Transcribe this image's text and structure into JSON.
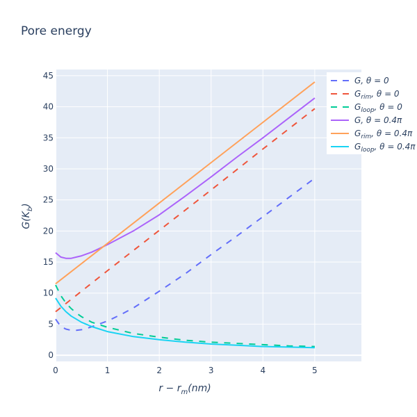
{
  "chart_data": {
    "type": "line",
    "title": "Pore energy",
    "xlabel": "r − r_m(nm)",
    "xlabel_main": "r − r",
    "xlabel_sub": "m",
    "xlabel_tail": "(nm)",
    "ylabel": "G(K_b)",
    "ylabel_main": "G(K",
    "ylabel_sub": "b",
    "ylabel_tail": ")",
    "xlim": [
      0,
      5.9
    ],
    "ylim": [
      -1,
      46
    ],
    "xticks": [
      0,
      1,
      2,
      3,
      4,
      5
    ],
    "yticks": [
      0,
      5,
      10,
      15,
      20,
      25,
      30,
      35,
      40,
      45
    ],
    "grid": true,
    "legend_position": "right",
    "series": [
      {
        "name": "G, θ = 0",
        "name_main": "G, θ = 0",
        "name_sub": "",
        "name_tail": "",
        "color": "#636efa",
        "dash": "dash",
        "x": [
          0,
          0.1,
          0.2,
          0.3,
          0.4,
          0.5,
          0.6,
          0.7,
          0.8,
          1,
          1.25,
          1.5,
          2,
          2.5,
          3,
          3.5,
          4,
          4.5,
          5
        ],
        "y": [
          5.8,
          4.6,
          4.2,
          4.0,
          4.0,
          4.1,
          4.3,
          4.6,
          4.9,
          5.5,
          6.5,
          7.6,
          10.3,
          13.1,
          16.2,
          19.2,
          22.3,
          25.4,
          28.5
        ]
      },
      {
        "name": "G_rim, θ = 0",
        "name_main": "G",
        "name_sub": "rim",
        "name_tail": ", θ = 0",
        "color": "#ef553b",
        "dash": "dash",
        "x": [
          0,
          1,
          2,
          3,
          4,
          5
        ],
        "y": [
          7.0,
          13.6,
          20.1,
          26.6,
          33.2,
          39.7
        ]
      },
      {
        "name": "G_loop, θ = 0",
        "name_main": "G",
        "name_sub": "loop",
        "name_tail": ", θ = 0",
        "color": "#00cc96",
        "dash": "dash",
        "x": [
          0,
          0.1,
          0.2,
          0.3,
          0.4,
          0.5,
          0.7,
          1,
          1.5,
          2,
          2.5,
          3,
          3.5,
          4,
          4.5,
          5
        ],
        "y": [
          11.3,
          9.6,
          8.4,
          7.5,
          6.8,
          6.2,
          5.3,
          4.5,
          3.5,
          2.9,
          2.4,
          2.1,
          1.9,
          1.7,
          1.5,
          1.4
        ]
      },
      {
        "name": "G, θ = 0.4π",
        "name_main": "G, θ = 0.4π",
        "name_sub": "",
        "name_tail": "",
        "color": "#ab63fa",
        "dash": "solid",
        "x": [
          0,
          0.1,
          0.2,
          0.3,
          0.4,
          0.5,
          0.7,
          1,
          1.5,
          2,
          2.5,
          3,
          3.5,
          4,
          4.5,
          5
        ],
        "y": [
          16.5,
          15.8,
          15.6,
          15.6,
          15.8,
          16.0,
          16.6,
          17.8,
          20.0,
          22.6,
          25.6,
          28.7,
          31.9,
          35.0,
          38.2,
          41.4
        ]
      },
      {
        "name": "G_rim, θ = 0.4π",
        "name_main": "G",
        "name_sub": "rim",
        "name_tail": ", θ = 0.4π",
        "color": "#ffa15a",
        "dash": "solid",
        "x": [
          0,
          1,
          2,
          3,
          4,
          5
        ],
        "y": [
          11.5,
          18.0,
          24.5,
          31.0,
          37.5,
          44.0
        ]
      },
      {
        "name": "G_loop, θ = 0.4π",
        "name_main": "G",
        "name_sub": "loop",
        "name_tail": ", θ = 0.4π",
        "color": "#19d3f3",
        "dash": "solid",
        "x": [
          0,
          0.1,
          0.2,
          0.3,
          0.4,
          0.5,
          0.7,
          1,
          1.5,
          2,
          2.5,
          3,
          3.5,
          4,
          4.5,
          5
        ],
        "y": [
          9.2,
          7.9,
          7.0,
          6.3,
          5.8,
          5.3,
          4.6,
          3.8,
          3.0,
          2.5,
          2.1,
          1.8,
          1.6,
          1.4,
          1.3,
          1.2
        ]
      }
    ]
  }
}
